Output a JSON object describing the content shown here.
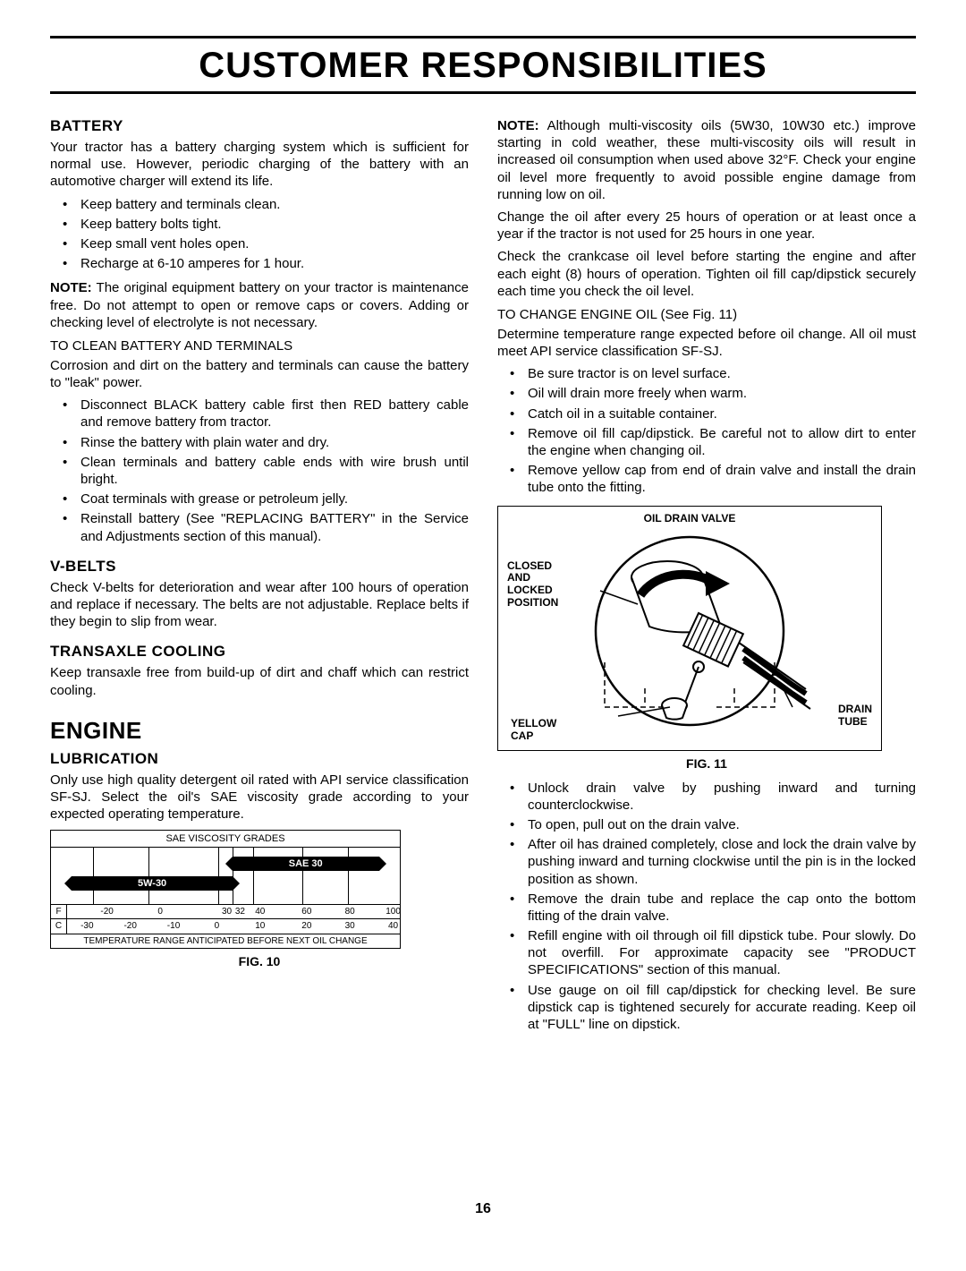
{
  "page_title": "CUSTOMER RESPONSIBILITIES",
  "page_number": "16",
  "left": {
    "battery": {
      "heading": "BATTERY",
      "intro": "Your tractor has a battery charging system which is sufficient for normal use. However, periodic charging of the battery with an automotive charger will extend its life.",
      "tips": [
        "Keep battery and terminals clean.",
        "Keep battery bolts tight.",
        "Keep small vent holes open.",
        "Recharge at 6-10 amperes for 1 hour."
      ],
      "note_label": "NOTE:",
      "note": " The original equipment battery on your tractor is maintenance free. Do not attempt to open or remove caps or covers. Adding or checking level of electrolyte is not necessary.",
      "clean_heading": "TO CLEAN BATTERY AND TERMINALS",
      "clean_intro": "Corrosion and dirt on the battery and terminals can cause the battery to \"leak\" power.",
      "clean_steps": [
        "Disconnect BLACK battery cable first then RED battery cable and remove battery from tractor.",
        "Rinse the battery with plain water and dry.",
        "Clean terminals and battery cable ends with wire brush until bright.",
        "Coat terminals with grease or petroleum jelly.",
        "Reinstall battery (See \"REPLACING BATTERY\" in the Service and Adjustments section of this manual)."
      ]
    },
    "vbelts": {
      "heading": "V-BELTS",
      "text": "Check V-belts for deterioration and wear after 100 hours of operation and replace if necessary. The belts are not adjustable. Replace belts if they begin to slip from wear."
    },
    "transaxle": {
      "heading": "TRANSAXLE COOLING",
      "text": "Keep transaxle free from build-up of dirt and chaff which can restrict cooling."
    },
    "engine": {
      "heading": "ENGINE",
      "lub_heading": "LUBRICATION",
      "lub_text": "Only use high quality detergent oil rated with API service classification SF-SJ. Select the oil's SAE viscosity grade according to your expected operating temperature."
    },
    "viscosity": {
      "title": "SAE VISCOSITY GRADES",
      "bar_sae30": "SAE 30",
      "bar_5w30": "5W-30",
      "f_label": "F",
      "c_label": "C",
      "f_ticks": [
        "-20",
        "0",
        "30",
        "32",
        "40",
        "60",
        "80",
        "100"
      ],
      "f_pos": [
        12,
        28,
        48,
        52,
        58,
        72,
        85,
        98
      ],
      "c_ticks": [
        "-30",
        "-20",
        "-10",
        "0",
        "10",
        "20",
        "30",
        "40"
      ],
      "c_pos": [
        6,
        19,
        32,
        45,
        58,
        72,
        85,
        98
      ],
      "footer": "TEMPERATURE RANGE ANTICIPATED BEFORE NEXT OIL CHANGE",
      "caption": "FIG. 10",
      "grid_pos": [
        12,
        28,
        48,
        52,
        58,
        72,
        85
      ]
    }
  },
  "right": {
    "note_label": "NOTE:",
    "note": " Although multi-viscosity oils (5W30, 10W30 etc.) improve starting in cold weather, these multi-viscosity oils will result in increased oil consumption when used above 32°F. Check your engine oil level more frequently to avoid possible engine damage from running low on oil.",
    "p2": "Change the oil after every 25 hours of operation or at least once a year if the tractor is not used for 25 hours in one year.",
    "p3": "Check the crankcase oil level before starting the engine and after each eight (8) hours of operation. Tighten oil fill cap/dipstick securely each time you check the oil level.",
    "to_change": "TO CHANGE ENGINE OIL (See Fig. 11)",
    "p4": "Determine temperature range expected before oil change. All oil must meet API service classification SF-SJ.",
    "bullets_a": [
      "Be sure tractor is on level surface.",
      "Oil will drain more freely when warm.",
      "Catch oil in a suitable container.",
      "Remove oil fill cap/dipstick. Be careful not to allow dirt to enter the engine when changing oil.",
      "Remove yellow cap from end of drain valve and install the drain tube onto the fitting."
    ],
    "fig11": {
      "title": "OIL DRAIN VALVE",
      "label_closed": "CLOSED\nAND\nLOCKED\nPOSITION",
      "label_yellow": "YELLOW\nCAP",
      "label_drain": "DRAIN\nTUBE",
      "caption": "FIG. 11"
    },
    "bullets_b": [
      "Unlock drain valve by pushing inward and turning counterclockwise.",
      "To open, pull out on the drain valve.",
      "After oil has drained completely, close and lock the drain valve by pushing inward and turning clockwise until the pin is in the locked position as shown.",
      "Remove the drain tube and replace the cap onto the bottom fitting of the drain valve.",
      "Refill engine with oil through oil fill dipstick tube. Pour slowly. Do not overfill. For approximate capacity see \"PRODUCT SPECIFICATIONS\" section of this manual.",
      "Use gauge on oil fill cap/dipstick for checking level. Be sure dipstick cap is tightened securely for accurate reading. Keep oil at \"FULL\" line on dipstick."
    ]
  }
}
